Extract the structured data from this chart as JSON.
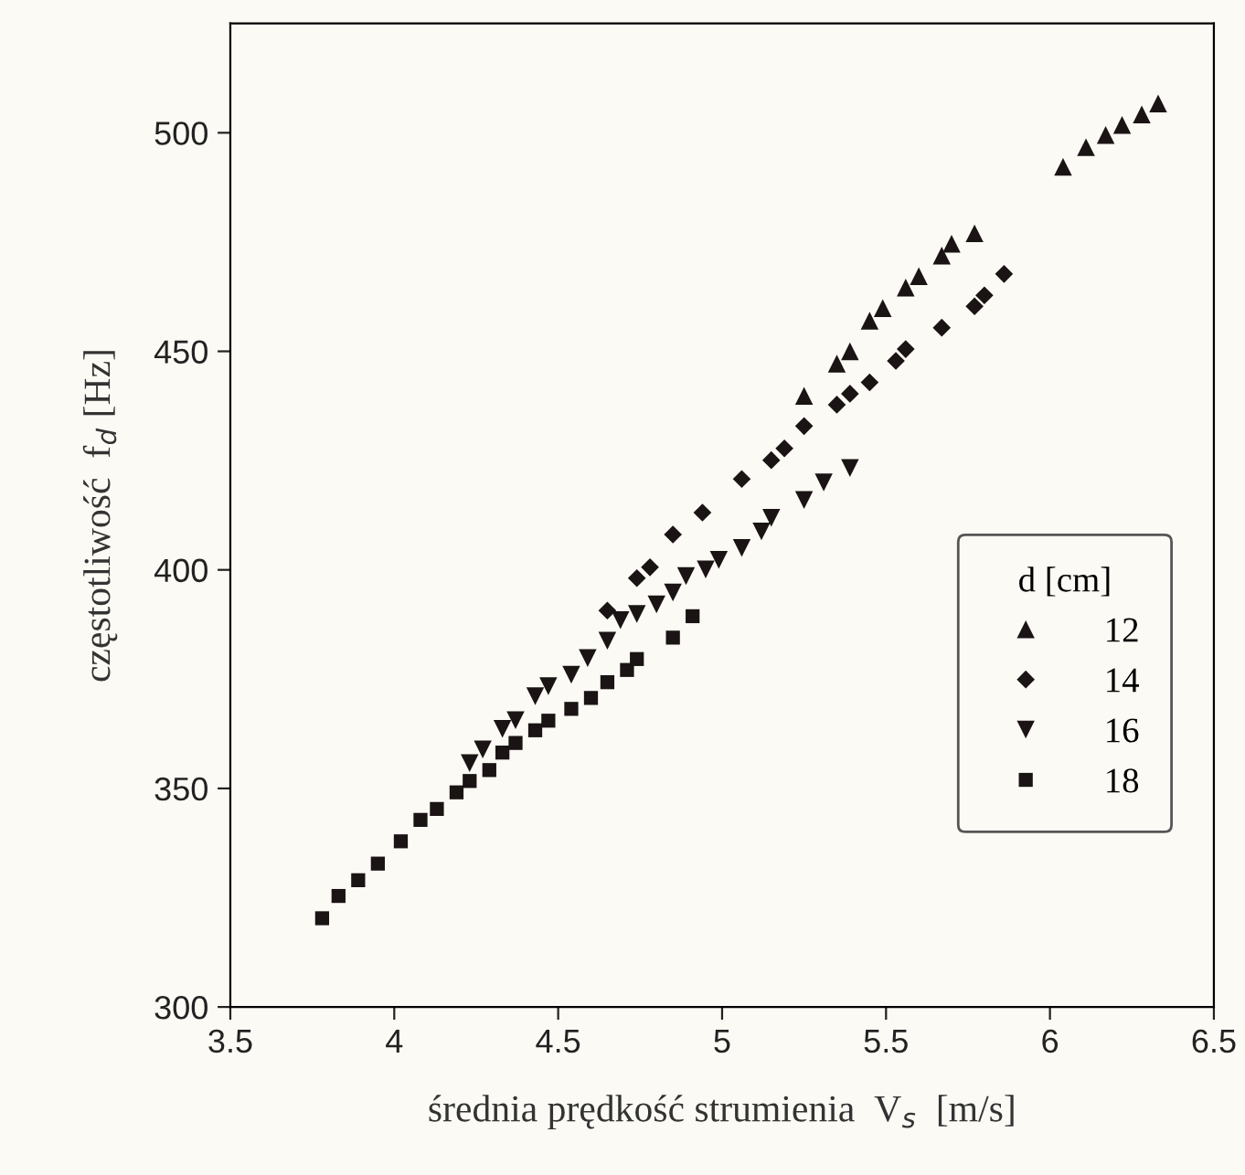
{
  "chart_data": {
    "type": "scatter",
    "xlabel": "średnia prędkość strumienia  V$_{s}$  [m/s]",
    "ylabel": "częstotliwość  f$_{d}$ [Hz]",
    "legend_title": "d [cm]",
    "legend": "lower right",
    "grid": false,
    "xlim": [
      3.5,
      6.5
    ],
    "xticks": [
      3.5,
      4,
      4.5,
      5,
      5.5,
      6,
      6.5
    ],
    "ylim": [
      300,
      525
    ],
    "yticks": [
      300,
      350,
      400,
      450,
      500
    ],
    "series": [
      {
        "name": "12",
        "color": "#1a1414",
        "marker": "triangle",
        "x": [
          5.25,
          5.35,
          5.39,
          5.45,
          5.49,
          5.56,
          5.6,
          5.67,
          5.7,
          5.77,
          6.04,
          6.11,
          6.17,
          6.22,
          6.28,
          6.33
        ],
        "values": [
          439.8,
          447.2,
          450,
          457,
          459.9,
          464.6,
          467.2,
          471.9,
          474.6,
          477,
          492.2,
          496.7,
          499.5,
          501.8,
          504.2,
          506.7
        ]
      },
      {
        "name": "14",
        "color": "#1a1414",
        "marker": "diamond",
        "x": [
          4.65,
          4.74,
          4.78,
          4.85,
          4.94,
          5.06,
          5.15,
          5.19,
          5.25,
          5.35,
          5.39,
          5.45,
          5.53,
          5.56,
          5.67,
          5.77,
          5.8,
          5.86
        ],
        "values": [
          390.7,
          398.1,
          400.6,
          408.1,
          413.1,
          420.8,
          425.1,
          427.8,
          432.9,
          437.8,
          440.3,
          442.9,
          447.8,
          450.5,
          455.4,
          460.3,
          462.8,
          467.7
        ]
      },
      {
        "name": "16",
        "color": "#1a1414",
        "marker": "triangle_down",
        "x": [
          4.23,
          4.27,
          4.33,
          4.37,
          4.43,
          4.47,
          4.54,
          4.59,
          4.65,
          4.69,
          4.74,
          4.8,
          4.85,
          4.89,
          4.95,
          4.99,
          5.06,
          5.12,
          5.15,
          5.25,
          5.31,
          5.39
        ],
        "values": [
          355.8,
          358.9,
          363.6,
          365.6,
          371.1,
          373.4,
          376,
          379.8,
          383.8,
          388.5,
          389.9,
          392.1,
          394.8,
          398.6,
          400.1,
          402.3,
          405,
          408.8,
          411.9,
          416,
          420,
          423.3
        ]
      },
      {
        "name": "18",
        "color": "#1a1414",
        "marker": "square",
        "x": [
          3.78,
          3.83,
          3.89,
          3.95,
          4.02,
          4.08,
          4.13,
          4.19,
          4.23,
          4.29,
          4.33,
          4.37,
          4.43,
          4.47,
          4.54,
          4.6,
          4.65,
          4.71,
          4.74,
          4.85,
          4.91
        ],
        "values": [
          320.3,
          325.4,
          329,
          332.8,
          337.9,
          342.8,
          345.3,
          349.1,
          351.7,
          354.2,
          358.2,
          360.4,
          363.3,
          365.5,
          368.2,
          370.7,
          374.3,
          377.1,
          379.6,
          384.5,
          389.4
        ]
      }
    ]
  }
}
